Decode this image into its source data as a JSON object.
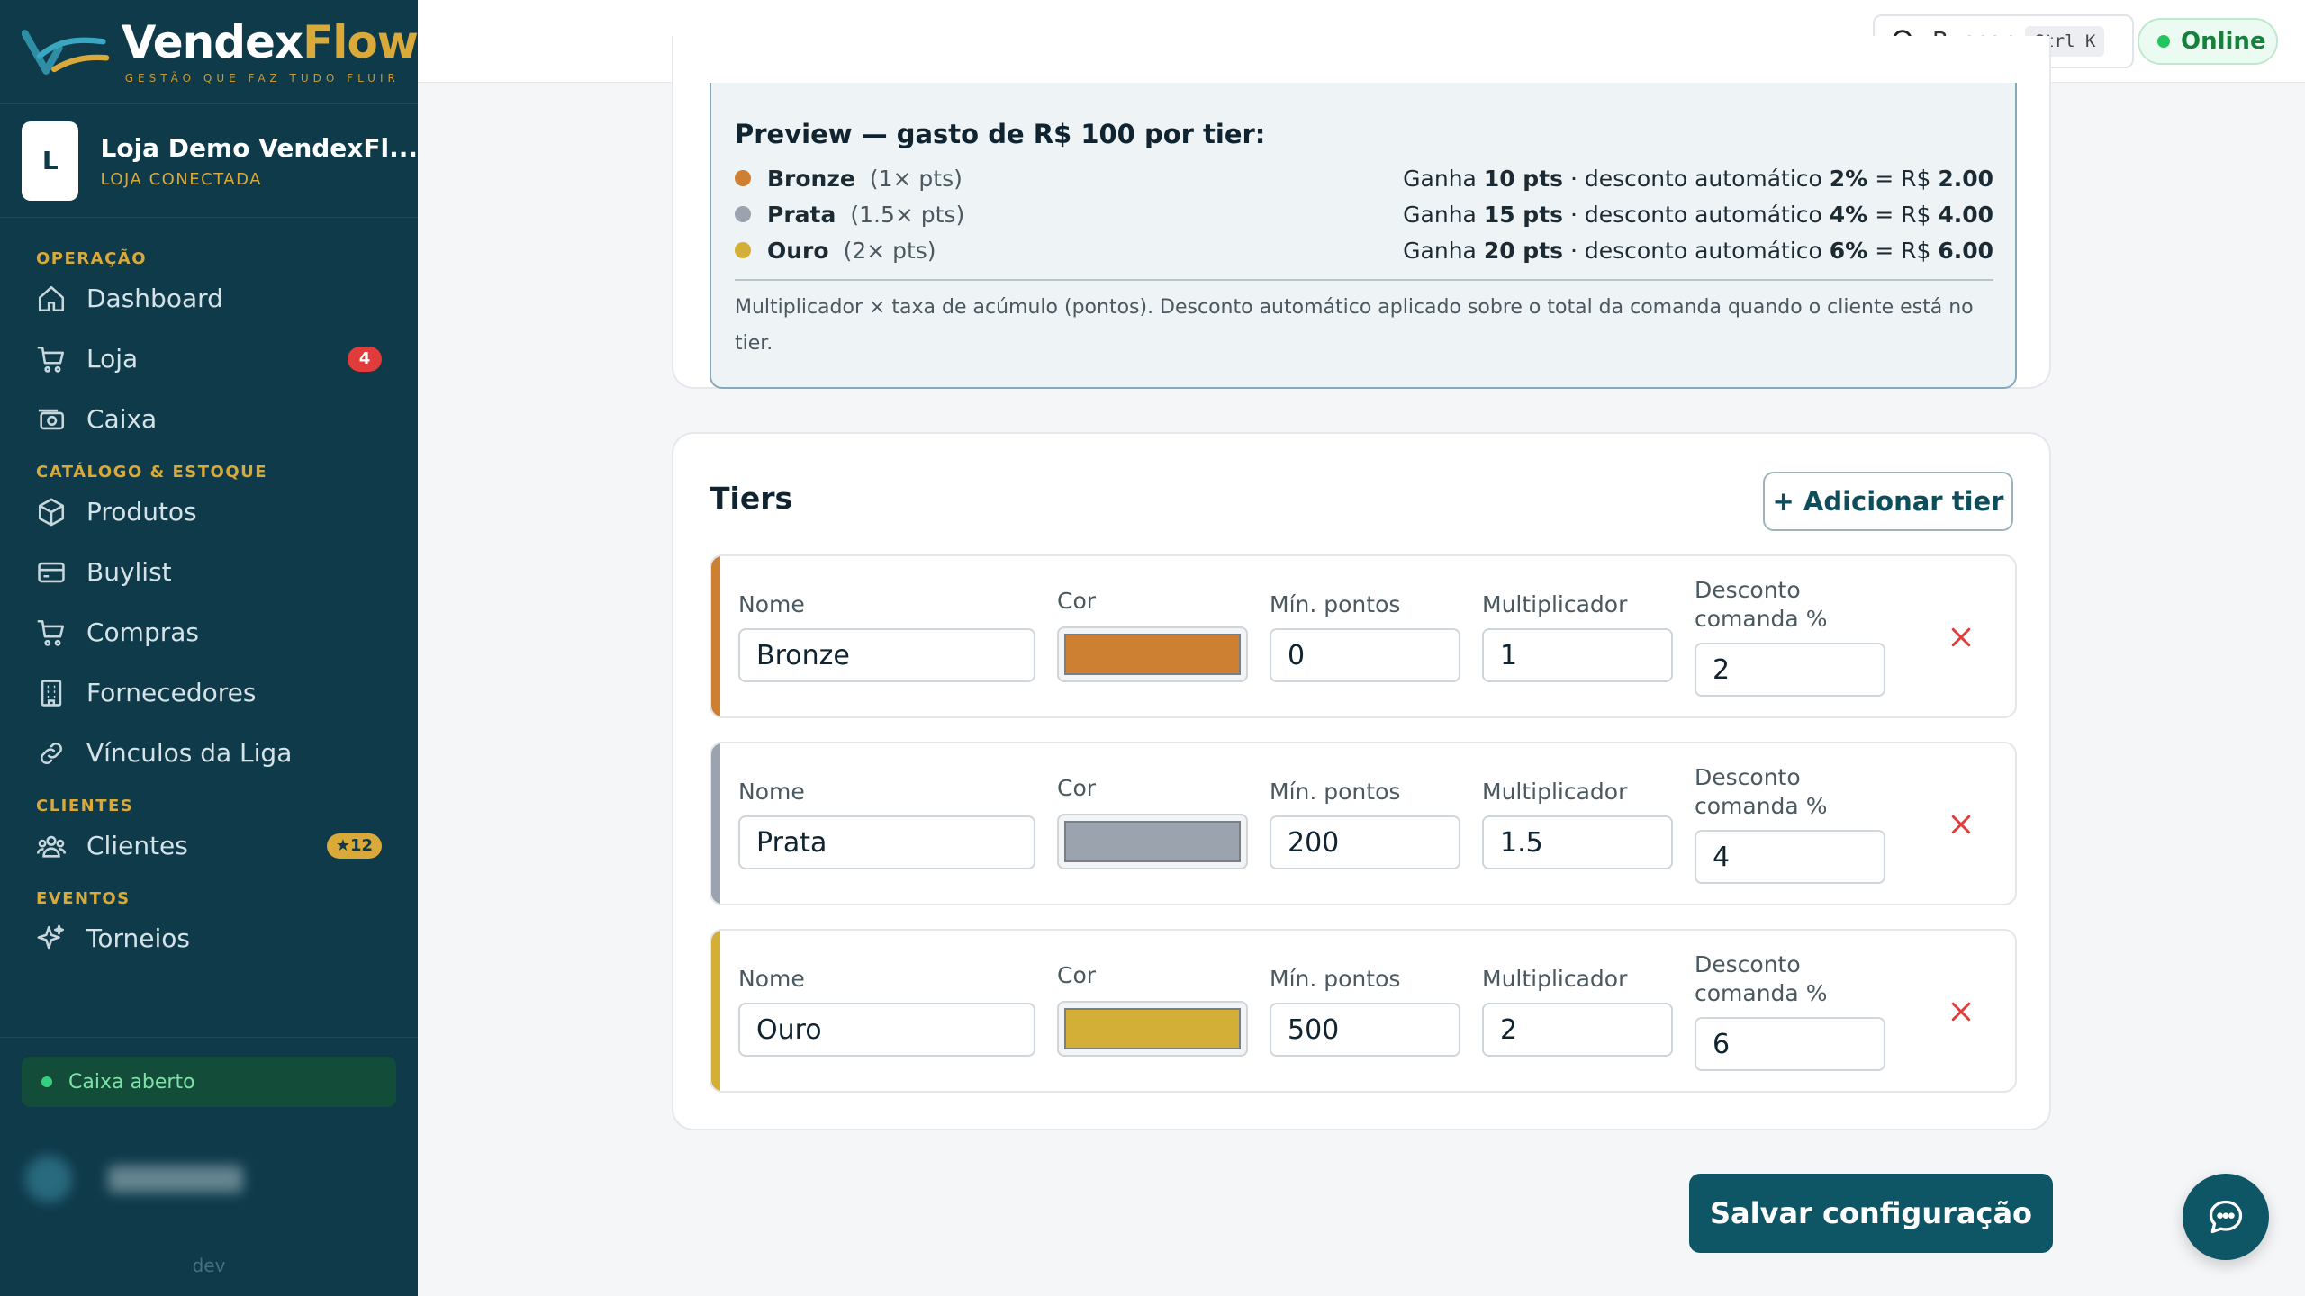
{
  "brand": {
    "name_primary": "Vendex",
    "name_accent": "Flow",
    "tagline": "GESTÃO QUE FAZ TUDO FLUIR"
  },
  "store": {
    "initial": "L",
    "name": "Loja Demo VendexFl...",
    "status": "LOJA CONECTADA"
  },
  "nav": {
    "sections": [
      {
        "title": "OPERAÇÃO",
        "items": [
          {
            "label": "Dashboard",
            "icon": "home-icon"
          },
          {
            "label": "Loja",
            "icon": "cart-icon",
            "badge": "4"
          },
          {
            "label": "Caixa",
            "icon": "cash-register-icon"
          }
        ]
      },
      {
        "title": "CATÁLOGO & ESTOQUE",
        "items": [
          {
            "label": "Produtos",
            "icon": "box-icon"
          },
          {
            "label": "Buylist",
            "icon": "credit-card-icon"
          },
          {
            "label": "Compras",
            "icon": "cart-icon"
          },
          {
            "label": "Fornecedores",
            "icon": "building-icon"
          },
          {
            "label": "Vínculos da Liga",
            "icon": "link-icon"
          }
        ]
      },
      {
        "title": "CLIENTES",
        "items": [
          {
            "label": "Clientes",
            "icon": "users-icon",
            "badge": "★12"
          }
        ]
      },
      {
        "title": "EVENTOS",
        "items": [
          {
            "label": "Torneios",
            "icon": "sparkle-icon"
          }
        ]
      }
    ]
  },
  "caixa_status": "Caixa aberto",
  "footer_label": "dev",
  "topbar": {
    "search_label": "Buscar",
    "search_shortcut": "Ctrl K",
    "online_label": "Online"
  },
  "preview": {
    "title": "Preview — gasto de R$ 100 por tier:",
    "rows": [
      {
        "name": "Bronze",
        "mult": "(1× pts)",
        "pts": "10 pts",
        "pct": "2%",
        "value": "2.00",
        "color": "#cd7f32"
      },
      {
        "name": "Prata",
        "mult": "(1.5× pts)",
        "pts": "15 pts",
        "pct": "4%",
        "value": "4.00",
        "color": "#9aa3ae"
      },
      {
        "name": "Ouro",
        "mult": "(2× pts)",
        "pts": "20 pts",
        "pct": "6%",
        "value": "6.00",
        "color": "#d4af37"
      }
    ],
    "summary_prefix": "Ganha",
    "summary_mid": "· desconto automático",
    "summary_eq": "= R$",
    "note": "Multiplicador × taxa de acúmulo (pontos). Desconto automático aplicado sobre o total da comanda quando o cliente está no tier."
  },
  "tiers": {
    "title": "Tiers",
    "add_label": "+ Adicionar tier",
    "labels": {
      "name": "Nome",
      "color": "Cor",
      "min_points": "Mín. pontos",
      "multiplier": "Multiplicador",
      "discount_line1": "Desconto",
      "discount_line2": "comanda %"
    },
    "rows": [
      {
        "name": "Bronze",
        "color": "#cd7f32",
        "min_points": "0",
        "multiplier": "1",
        "discount": "2"
      },
      {
        "name": "Prata",
        "color": "#9aa3ae",
        "min_points": "200",
        "multiplier": "1.5",
        "discount": "4"
      },
      {
        "name": "Ouro",
        "color": "#d4af37",
        "min_points": "500",
        "multiplier": "2",
        "discount": "6"
      }
    ]
  },
  "save_label": "Salvar configuração",
  "colors": {
    "sidebar": "#0e3a4a",
    "accent_gold": "#d9a93a",
    "primary": "#0e5566",
    "danger": "#e23b3b"
  }
}
